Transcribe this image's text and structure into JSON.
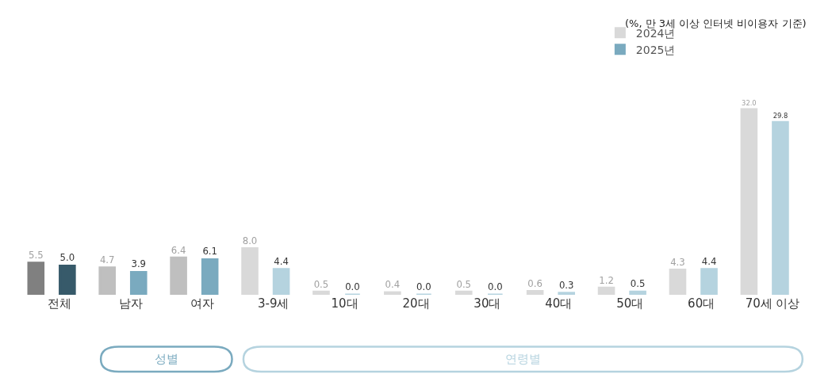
{
  "chart_data": {
    "type": "bar",
    "categories": [
      "전체",
      "남자",
      "여자",
      "3-9세",
      "10대",
      "20대",
      "30대",
      "40대",
      "50대",
      "60대",
      "70세 이상"
    ],
    "series": [
      {
        "name": "2024년",
        "color": "#d9d9d9",
        "colors": [
          "#808080",
          "#bfbfbf",
          "#bfbfbf",
          "#d9d9d9",
          "#d9d9d9",
          "#d9d9d9",
          "#d9d9d9",
          "#d9d9d9",
          "#d9d9d9",
          "#d9d9d9",
          "#d9d9d9"
        ],
        "values": [
          5.5,
          4.7,
          6.4,
          8.0,
          0.5,
          0.4,
          0.5,
          0.6,
          1.2,
          4.3,
          32.0
        ],
        "value_labels": [
          "5.5",
          "4.7",
          "6.4",
          "8.0",
          "0.5",
          "0.4",
          "0.5",
          "0.6",
          "1.2",
          "4.3",
          "32.0"
        ]
      },
      {
        "name": "2025년",
        "color": "#7aaabf",
        "colors": [
          "#375a6a",
          "#7aaabf",
          "#7aaabf",
          "#b5d3df",
          "#b5d3df",
          "#b5d3df",
          "#b5d3df",
          "#b5d3df",
          "#b5d3df",
          "#b5d3df",
          "#b5d3df"
        ],
        "values": [
          5.0,
          3.9,
          6.1,
          4.4,
          0.0,
          0.0,
          0.0,
          0.3,
          0.5,
          4.4,
          29.8
        ],
        "value_labels": [
          "5.0",
          "3.9",
          "6.1",
          "4.4",
          "0.0",
          "0.0",
          "0.0",
          "0.3",
          "0.5",
          "4.4",
          "29.8"
        ]
      }
    ],
    "annotations": [
      "(%, 만 3세 이상 인터넷 비이용자 기준)",
      "성별",
      "연령별"
    ],
    "legend": "top right"
  }
}
